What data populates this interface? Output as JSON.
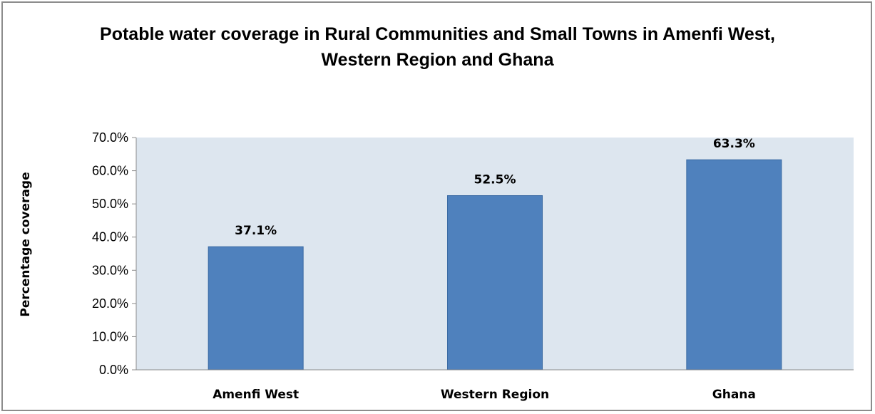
{
  "chart_data": {
    "type": "bar",
    "title_lines": [
      "Potable water coverage in Rural Communities and Small Towns in Amenfi West,",
      "Western Region and Ghana"
    ],
    "categories": [
      "Amenfi West",
      "Western Region",
      "Ghana"
    ],
    "values": [
      37.1,
      52.5,
      63.3
    ],
    "data_labels": [
      "37.1%",
      "52.5%",
      "63.3%"
    ],
    "xlabel": "",
    "ylabel": "Percentage coverage",
    "ylim": [
      0,
      70
    ],
    "yticks": [
      {
        "value": 0,
        "label": "0.0%"
      },
      {
        "value": 10,
        "label": "10.0%"
      },
      {
        "value": 20,
        "label": "20.0%"
      },
      {
        "value": 30,
        "label": "30.0%"
      },
      {
        "value": 40,
        "label": "40.0%"
      },
      {
        "value": 50,
        "label": "50.0%"
      },
      {
        "value": 60,
        "label": "60.0%"
      },
      {
        "value": 70,
        "label": "70.0%"
      }
    ],
    "grid": false,
    "legend": "none",
    "colors": {
      "bar": "#4f81bd",
      "bar_edge": "#3a6aa3",
      "plot_background": "#dde6ef",
      "axis": "#8c8c8c"
    }
  }
}
